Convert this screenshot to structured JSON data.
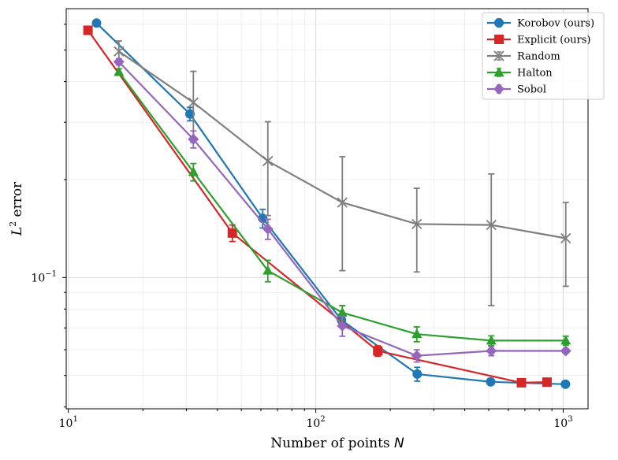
{
  "chart_data": {
    "type": "line",
    "xscale": "log",
    "yscale": "log",
    "title": "",
    "xlabel": "Number of points",
    "xlabel_var": "N",
    "ylabel_prefix": "L",
    "ylabel_sup": "2",
    "ylabel_suffix": " error",
    "xlim": [
      9.8,
      1260
    ],
    "ylim": [
      0.0395,
      0.67
    ],
    "x_major_ticks": [
      {
        "value": 10,
        "base": "10",
        "exp": "1"
      },
      {
        "value": 100,
        "base": "10",
        "exp": "2"
      },
      {
        "value": 1000,
        "base": "10",
        "exp": "3"
      }
    ],
    "y_major_ticks": [
      {
        "value": 0.1,
        "base": "10",
        "exp": "−1"
      }
    ],
    "grid": true,
    "legend_position": "top-right",
    "series": [
      {
        "name": "Korobov (ours)",
        "color": "#1f77b4",
        "marker": "circle",
        "x": [
          13,
          31,
          61,
          127,
          257,
          509,
          1021
        ],
        "y": [
          0.605,
          0.318,
          0.152,
          0.074,
          0.0505,
          0.0478,
          0.047
        ],
        "err": [
          0.0,
          0.015,
          0.01,
          0.003,
          0.0025,
          0.001,
          0.0008
        ]
      },
      {
        "name": "Explicit (ours)",
        "color": "#d62728",
        "marker": "square",
        "x": [
          12,
          46,
          178,
          678,
          860
        ],
        "y": [
          0.575,
          0.137,
          0.0595,
          0.0475,
          0.0477
        ],
        "err": [
          0.0,
          0.008,
          0.0022,
          0.0008,
          0.0008
        ]
      },
      {
        "name": "Random",
        "color": "#7f7f7f",
        "marker": "x",
        "x": [
          16,
          32,
          64,
          128,
          256,
          512,
          1024
        ],
        "y": [
          0.495,
          0.345,
          0.228,
          0.17,
          0.146,
          0.145,
          0.132
        ],
        "err": [
          0.038,
          0.085,
          0.073,
          0.065,
          0.042,
          0.063,
          0.038
        ]
      },
      {
        "name": "Halton",
        "color": "#2ca02c",
        "marker": "triangle",
        "x": [
          16,
          32,
          64,
          128,
          256,
          512,
          1024
        ],
        "y": [
          0.428,
          0.211,
          0.105,
          0.078,
          0.067,
          0.064,
          0.064
        ],
        "err": [
          0.01,
          0.013,
          0.008,
          0.004,
          0.0035,
          0.0022,
          0.002
        ]
      },
      {
        "name": "Sobol",
        "color": "#9467bd",
        "marker": "diamond",
        "x": [
          16,
          32,
          64,
          128,
          256,
          512,
          1024
        ],
        "y": [
          0.46,
          0.266,
          0.141,
          0.071,
          0.0575,
          0.0595,
          0.0595
        ],
        "err": [
          0.01,
          0.016,
          0.01,
          0.005,
          0.0025,
          0.002,
          0.001
        ]
      }
    ]
  }
}
